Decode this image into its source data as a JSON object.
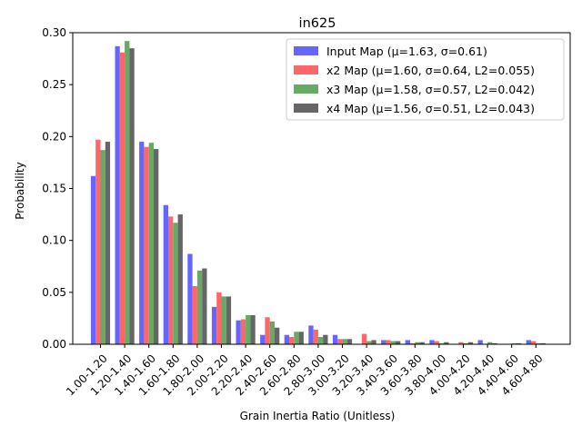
{
  "chart_data": {
    "type": "bar",
    "title": "in625",
    "xlabel": "Grain Inertia Ratio (Unitless)",
    "ylabel": "Probability",
    "ylim": [
      0,
      0.3
    ],
    "yticks": [
      "0.00",
      "0.05",
      "0.10",
      "0.15",
      "0.20",
      "0.25",
      "0.30"
    ],
    "grid": false,
    "legend_position": "top-right",
    "categories": [
      "1.00-1.20",
      "1.20-1.40",
      "1.40-1.60",
      "1.60-1.80",
      "1.80-2.00",
      "2.00-2.20",
      "2.20-2.40",
      "2.40-2.60",
      "2.60-2.80",
      "2.80-3.00",
      "3.00-3.20",
      "3.20-3.40",
      "3.40-3.60",
      "3.60-3.80",
      "3.80-4.00",
      "4.00-4.20",
      "4.20-4.40",
      "4.40-4.60",
      "4.60-4.80"
    ],
    "series": [
      {
        "name": "Input Map (μ=1.63, σ=0.61)",
        "color": "#6666ff",
        "values": [
          0.162,
          0.287,
          0.195,
          0.134,
          0.087,
          0.036,
          0.023,
          0.009,
          0.009,
          0.018,
          0.009,
          0.0,
          0.004,
          0.004,
          0.004,
          0.0,
          0.004,
          0.0,
          0.004
        ]
      },
      {
        "name": "x2 Map (μ=1.60, σ=0.64, L2=0.055)",
        "color": "#ff6666",
        "values": [
          0.197,
          0.281,
          0.19,
          0.123,
          0.056,
          0.05,
          0.024,
          0.026,
          0.007,
          0.014,
          0.005,
          0.01,
          0.004,
          0.001,
          0.003,
          0.002,
          0.0,
          0.0,
          0.003
        ]
      },
      {
        "name": "x3 Map (μ=1.58, σ=0.57, L2=0.042)",
        "color": "#66aa66",
        "values": [
          0.187,
          0.292,
          0.194,
          0.117,
          0.071,
          0.046,
          0.028,
          0.022,
          0.012,
          0.007,
          0.005,
          0.003,
          0.003,
          0.002,
          0.001,
          0.001,
          0.002,
          0.001,
          0.001
        ]
      },
      {
        "name": "x4 Map (μ=1.56, σ=0.51, L2=0.043)",
        "color": "#666666",
        "values": [
          0.195,
          0.285,
          0.188,
          0.125,
          0.073,
          0.046,
          0.028,
          0.016,
          0.012,
          0.009,
          0.005,
          0.004,
          0.003,
          0.002,
          0.002,
          0.002,
          0.001,
          0.001,
          0.001
        ]
      }
    ]
  }
}
